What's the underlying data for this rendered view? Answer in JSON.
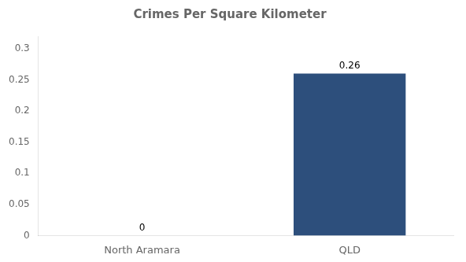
{
  "chart_data": {
    "type": "bar",
    "title": "Crimes Per Square Kilometer",
    "categories": [
      "North Aramara",
      "QLD"
    ],
    "values": [
      0,
      0.26
    ],
    "colors": [
      "#4a4a4a",
      "#2d4f7c"
    ],
    "ylim": [
      0,
      0.32
    ],
    "yticks": [
      0,
      0.05,
      0.1,
      0.15,
      0.2,
      0.25,
      0.3
    ],
    "grid": false,
    "data_labels": true
  }
}
